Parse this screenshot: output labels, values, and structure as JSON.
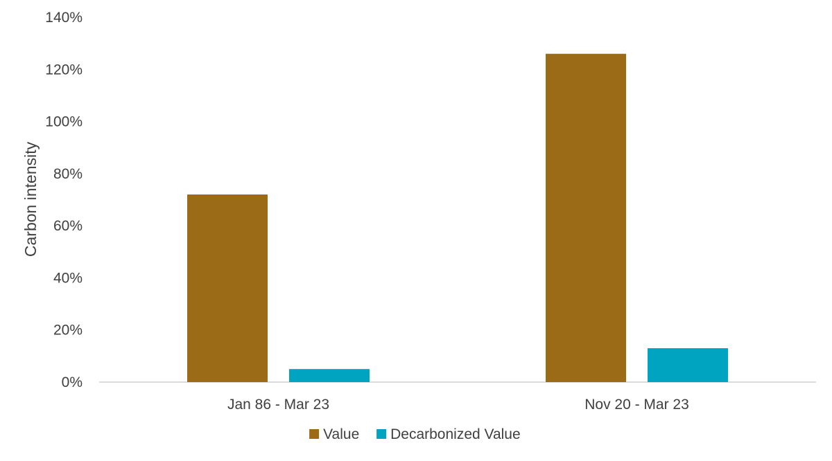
{
  "chart_data": {
    "type": "bar",
    "title": "",
    "xlabel": "",
    "ylabel": "Carbon intensity",
    "categories": [
      "Jan 86 - Mar 23",
      "Nov 20 - Mar 23"
    ],
    "series": [
      {
        "name": "Value",
        "values": [
          72,
          126
        ],
        "color": "#9C6B17"
      },
      {
        "name": "Decarbonized Value",
        "values": [
          5,
          13
        ],
        "color": "#00A3C0"
      }
    ],
    "ylim": [
      0,
      140
    ],
    "yticks": [
      0,
      20,
      40,
      60,
      80,
      100,
      120,
      140
    ],
    "ytick_labels": [
      "0%",
      "20%",
      "40%",
      "60%",
      "80%",
      "100%",
      "120%",
      "140%"
    ],
    "grid": false,
    "legend_position": "bottom-center"
  }
}
